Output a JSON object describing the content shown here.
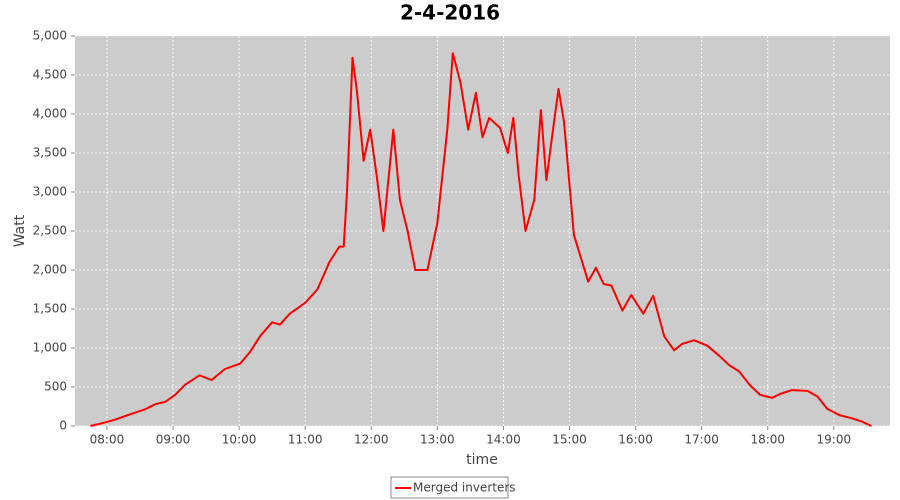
{
  "chart_data": {
    "type": "line",
    "title": "2-4-2016",
    "x_label": "time",
    "y_label": "Watt",
    "x": [
      "07:45",
      "07:54",
      "08:07",
      "08:21",
      "08:34",
      "08:44",
      "08:53",
      "09:02",
      "09:11",
      "09:24",
      "09:35",
      "09:47",
      "10:01",
      "10:10",
      "10:19",
      "10:30",
      "10:37",
      "10:46",
      "11:00",
      "11:11",
      "11:22",
      "11:31",
      "11:35",
      "11:38",
      "11:43",
      "11:47",
      "11:53",
      "11:59",
      "12:05",
      "12:11",
      "12:20",
      "12:26",
      "12:33",
      "12:40",
      "12:51",
      "13:00",
      "13:09",
      "13:14",
      "13:21",
      "13:28",
      "13:35",
      "13:41",
      "13:47",
      "13:57",
      "14:04",
      "14:09",
      "14:14",
      "14:20",
      "14:28",
      "14:34",
      "14:39",
      "14:45",
      "14:50",
      "14:55",
      "15:04",
      "15:17",
      "15:24",
      "15:31",
      "15:38",
      "15:48",
      "15:56",
      "16:07",
      "16:16",
      "16:26",
      "16:35",
      "16:42",
      "16:53",
      "17:05",
      "17:16",
      "17:25",
      "17:34",
      "17:44",
      "17:53",
      "18:04",
      "18:11",
      "18:22",
      "18:36",
      "18:45",
      "18:54",
      "19:05",
      "19:16",
      "19:25",
      "19:34"
    ],
    "series": [
      {
        "name": "Merged inverters",
        "color": "#ff0000",
        "values": [
          0,
          30,
          80,
          150,
          210,
          280,
          310,
          400,
          530,
          650,
          590,
          730,
          800,
          950,
          1150,
          1330,
          1300,
          1440,
          1580,
          1750,
          2100,
          2300,
          2300,
          3000,
          4720,
          4300,
          3400,
          3800,
          3200,
          2500,
          3800,
          2900,
          2500,
          2000,
          2000,
          2600,
          3800,
          4780,
          4400,
          3800,
          4270,
          3700,
          3950,
          3820,
          3500,
          3950,
          3200,
          2500,
          2900,
          4050,
          3150,
          3800,
          4320,
          3900,
          2450,
          1850,
          2030,
          1820,
          1800,
          1480,
          1680,
          1440,
          1670,
          1150,
          970,
          1050,
          1100,
          1030,
          900,
          780,
          700,
          520,
          400,
          360,
          410,
          460,
          450,
          380,
          220,
          140,
          100,
          60,
          0
        ]
      }
    ],
    "xlim": [
      "07:31",
      "19:51"
    ],
    "xticks": [
      "08:00",
      "09:00",
      "10:00",
      "11:00",
      "12:00",
      "13:00",
      "14:00",
      "15:00",
      "16:00",
      "17:00",
      "18:00",
      "19:00"
    ],
    "ylim": [
      0,
      5000
    ],
    "yticks": [
      0,
      500,
      {
        "value": 1000,
        "label": "1,000"
      },
      {
        "value": 1500,
        "label": "1,500"
      },
      {
        "value": 2000,
        "label": "2,000"
      },
      {
        "value": 2500,
        "label": "2,500"
      },
      {
        "value": 3000,
        "label": "3,000"
      },
      {
        "value": 3500,
        "label": "3,500"
      },
      {
        "value": 4000,
        "label": "4,000"
      },
      {
        "value": 4500,
        "label": "4,500"
      },
      {
        "value": 5000,
        "label": "5,000"
      }
    ],
    "grid": true,
    "legend": "bottom"
  }
}
